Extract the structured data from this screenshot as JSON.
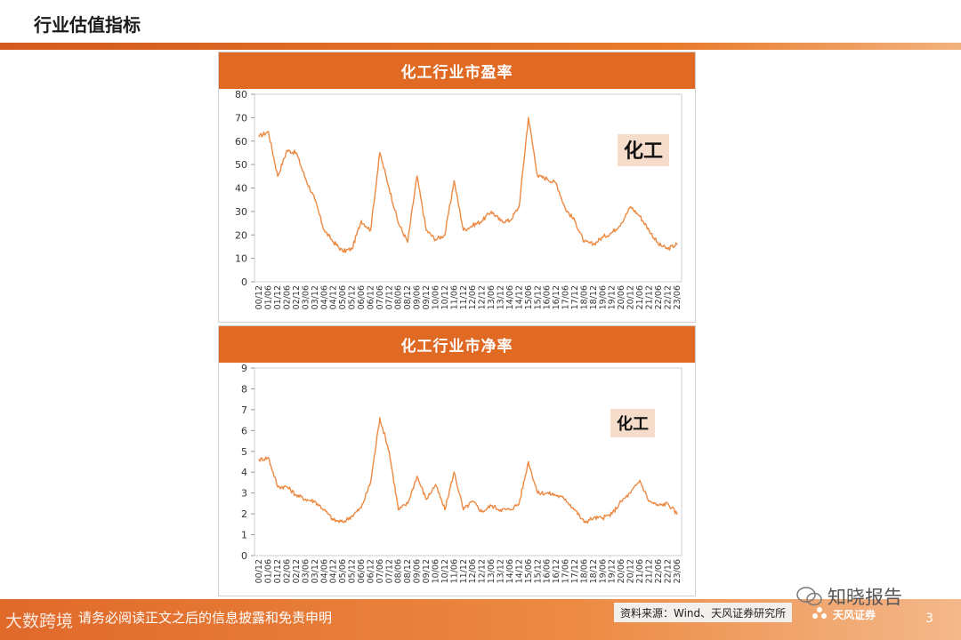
{
  "page": {
    "title": "行业估值指标"
  },
  "footer": {
    "disclaimer": "请务必阅读正文之后的信息披露和免责申明",
    "source": "资料来源：Wind、天风证券研究所",
    "brand": "天风证券",
    "page_number": "3"
  },
  "watermarks": {
    "left": "大数跨境",
    "right": "知晓报告"
  },
  "colors": {
    "accent": "#e06a24",
    "line": "#ec8a43",
    "badge": "#f6dccb"
  },
  "x_tick_labels": [
    "00/12",
    "01/06",
    "01/12",
    "02/06",
    "02/12",
    "03/06",
    "03/12",
    "04/06",
    "04/12",
    "05/06",
    "05/12",
    "06/06",
    "06/12",
    "07/06",
    "07/12",
    "08/06",
    "08/12",
    "09/06",
    "09/12",
    "10/06",
    "10/12",
    "11/06",
    "11/12",
    "12/06",
    "12/12",
    "13/06",
    "13/12",
    "14/06",
    "14/12",
    "15/06",
    "15/12",
    "16/06",
    "16/12",
    "17/06",
    "17/12",
    "18/06",
    "18/12",
    "19/06",
    "19/12",
    "20/06",
    "20/12",
    "21/06",
    "21/12",
    "22/06",
    "22/12",
    "23/06"
  ],
  "chart_data": [
    {
      "type": "line",
      "title": "化工行业市盈率",
      "badge": "化工",
      "ylim": [
        0,
        80
      ],
      "yticks": [
        0,
        10,
        20,
        30,
        40,
        50,
        60,
        70,
        80
      ],
      "x": [
        "00/12",
        "01/06",
        "01/12",
        "02/06",
        "02/12",
        "03/06",
        "03/12",
        "04/06",
        "04/12",
        "05/06",
        "05/12",
        "06/06",
        "06/12",
        "07/06",
        "07/12",
        "08/06",
        "08/12",
        "09/06",
        "09/12",
        "10/06",
        "10/12",
        "11/06",
        "11/12",
        "12/06",
        "12/12",
        "13/06",
        "13/12",
        "14/06",
        "14/12",
        "15/06",
        "15/12",
        "16/06",
        "16/12",
        "17/06",
        "17/12",
        "18/06",
        "18/12",
        "19/06",
        "19/12",
        "20/06",
        "20/12",
        "21/06",
        "21/12",
        "22/06",
        "22/12",
        "23/06"
      ],
      "values": [
        62,
        64,
        45,
        56,
        55,
        44,
        35,
        22,
        17,
        13,
        14,
        26,
        22,
        55,
        40,
        25,
        17,
        45,
        22,
        18,
        20,
        43,
        22,
        24,
        26,
        30,
        26,
        26,
        32,
        70,
        45,
        44,
        42,
        31,
        26,
        17,
        16,
        19,
        21,
        25,
        32,
        28,
        22,
        16,
        14,
        16
      ],
      "grid": false,
      "legend": "none"
    },
    {
      "type": "line",
      "title": "化工行业市净率",
      "badge": "化工",
      "ylim": [
        0,
        9
      ],
      "yticks": [
        0,
        1,
        2,
        3,
        4,
        5,
        6,
        7,
        8,
        9
      ],
      "x": [
        "00/12",
        "01/06",
        "01/12",
        "02/06",
        "02/12",
        "03/06",
        "03/12",
        "04/06",
        "04/12",
        "05/06",
        "05/12",
        "06/06",
        "06/12",
        "07/06",
        "07/12",
        "08/06",
        "08/12",
        "09/06",
        "09/12",
        "10/06",
        "10/12",
        "11/06",
        "11/12",
        "12/06",
        "12/12",
        "13/06",
        "13/12",
        "14/06",
        "14/12",
        "15/06",
        "15/12",
        "16/06",
        "16/12",
        "17/06",
        "17/12",
        "18/06",
        "18/12",
        "19/06",
        "19/12",
        "20/06",
        "20/12",
        "21/06",
        "21/12",
        "22/06",
        "22/12",
        "23/06"
      ],
      "values": [
        4.6,
        4.7,
        3.3,
        3.3,
        2.9,
        2.7,
        2.6,
        2.2,
        1.7,
        1.6,
        1.9,
        2.3,
        3.5,
        6.6,
        5.0,
        2.2,
        2.5,
        3.8,
        2.7,
        3.4,
        2.2,
        4.0,
        2.2,
        2.6,
        2.1,
        2.4,
        2.2,
        2.2,
        2.5,
        4.5,
        3.0,
        3.0,
        2.9,
        2.7,
        2.2,
        1.6,
        1.8,
        1.8,
        2.0,
        2.6,
        3.0,
        3.6,
        2.6,
        2.4,
        2.5,
        2.0
      ],
      "grid": false,
      "legend": "none"
    }
  ]
}
